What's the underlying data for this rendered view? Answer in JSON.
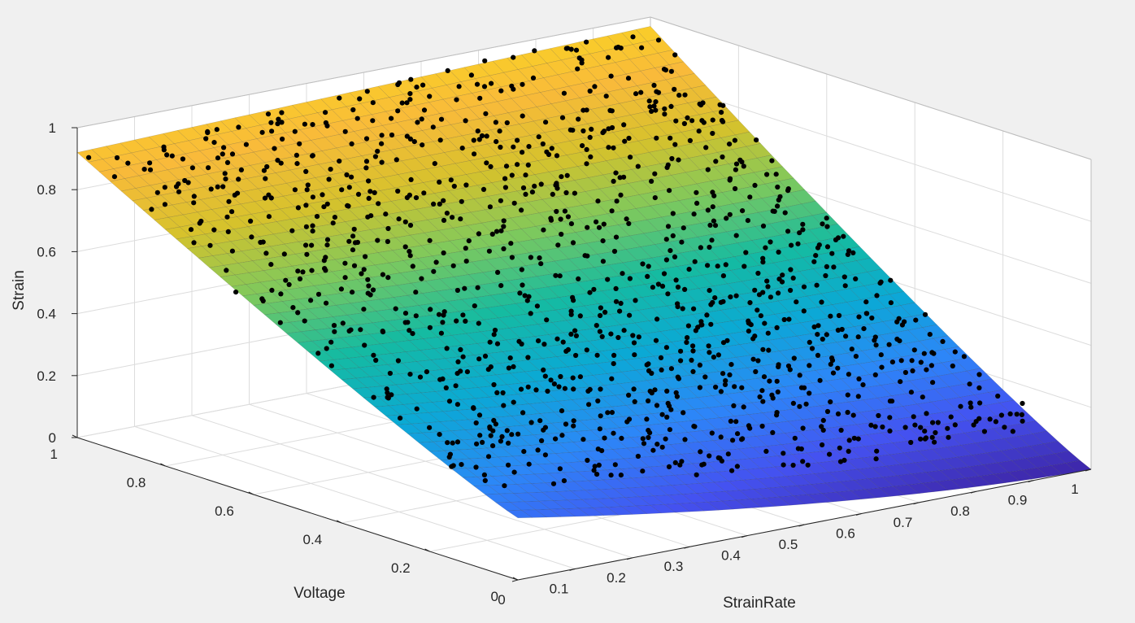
{
  "chart_data": {
    "type": "surface3d",
    "xlabel": "StrainRate",
    "ylabel": "Voltage",
    "zlabel": "Strain",
    "xlim": [
      0,
      1
    ],
    "ylim": [
      0,
      1
    ],
    "zlim": [
      0,
      1
    ],
    "xticks": [
      0,
      0.1,
      0.2,
      0.3,
      0.4,
      0.5,
      0.6,
      0.7,
      0.8,
      0.9,
      1
    ],
    "xtick_labels": [
      "0",
      "0.1",
      "0.2",
      "0.3",
      "0.4",
      "0.5",
      "0.6",
      "0.7",
      "0.8",
      "0.9",
      "1"
    ],
    "yticks": [
      0,
      0.2,
      0.4,
      0.6,
      0.8,
      1
    ],
    "ytick_labels": [
      "0",
      "0.2",
      "0.4",
      "0.6",
      "0.8",
      "1"
    ],
    "zticks": [
      0,
      0.2,
      0.4,
      0.6,
      0.8,
      1
    ],
    "ztick_labels": [
      "0",
      "0.2",
      "0.4",
      "0.6",
      "0.8",
      "1"
    ],
    "grid": true,
    "colormap": "parula",
    "colormap_colors": [
      "#3e26a8",
      "#4452f1",
      "#2c87f8",
      "#0ba9d5",
      "#15bba1",
      "#7dc95d",
      "#d6c22c",
      "#f9ba3a",
      "#f9d423"
    ],
    "surface_corner_values": [
      {
        "x": 0,
        "y": 0,
        "z": 0.2
      },
      {
        "x": 1,
        "y": 0,
        "z": 0.0
      },
      {
        "x": 0,
        "y": 1,
        "z": 0.92
      },
      {
        "x": 1,
        "y": 1,
        "z": 0.97
      }
    ],
    "surface_grid": [
      40,
      40
    ],
    "scatter_count": 1150,
    "scatter_color": "#000000"
  }
}
